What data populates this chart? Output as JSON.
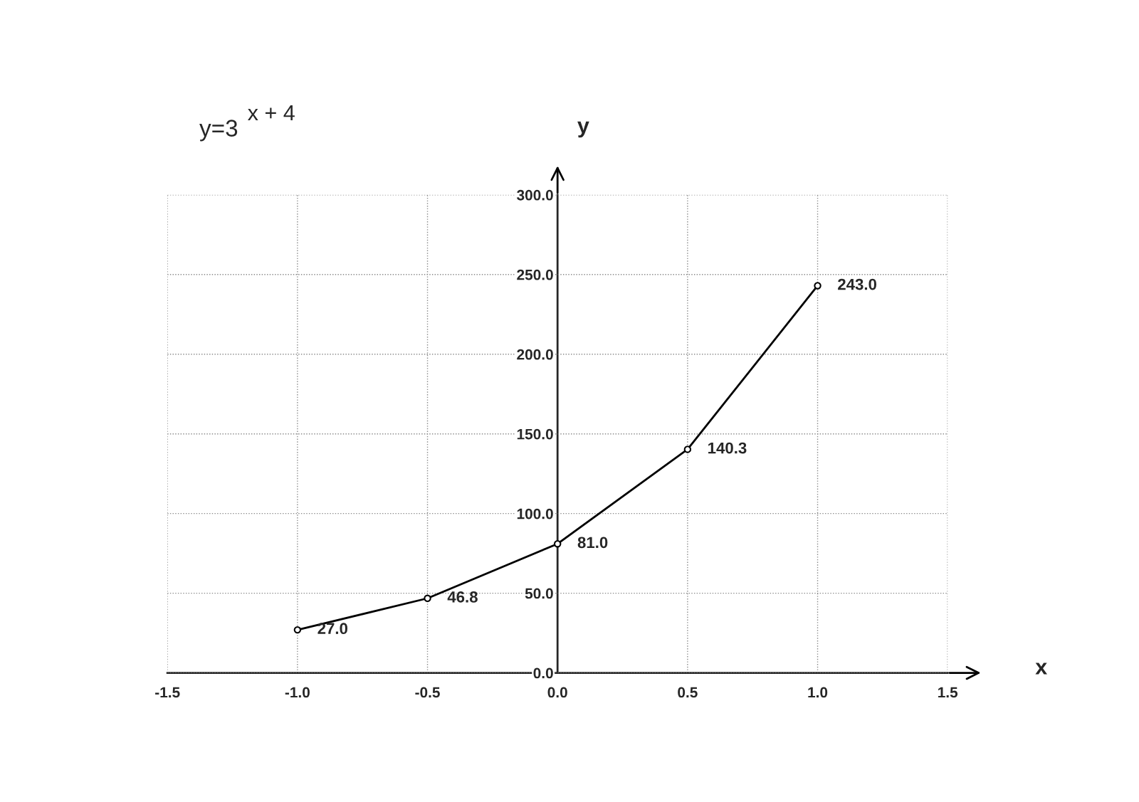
{
  "chart_data": {
    "type": "line",
    "title": "y=3$^{x + 4}$",
    "xlabel": "x",
    "ylabel": "y",
    "x": [
      -1.0,
      -0.5,
      0.0,
      0.5,
      1.0
    ],
    "series": [
      {
        "color": "#000000",
        "values": [
          27.0,
          46.8,
          81.0,
          140.3,
          243.0
        ],
        "value_labels": [
          "27.0",
          "46.8",
          "81.0",
          "140.3",
          "243.0"
        ]
      }
    ],
    "xlim": [
      -1.5,
      1.5
    ],
    "ylim": [
      0,
      300
    ],
    "xticks": [
      {
        "value": -1.5,
        "label": "-1.5"
      },
      {
        "value": -1.0,
        "label": "-1.0"
      },
      {
        "value": -0.5,
        "label": "-0.5"
      },
      {
        "value": 0.0,
        "label": "0.0"
      },
      {
        "value": 0.5,
        "label": "0.5"
      },
      {
        "value": 1.0,
        "label": "1.0"
      },
      {
        "value": 1.5,
        "label": "1.5"
      }
    ],
    "yticks": [
      {
        "value": 0,
        "label": "0.0"
      },
      {
        "value": 50,
        "label": "50.0"
      },
      {
        "value": 100,
        "label": "100.0"
      },
      {
        "value": 150,
        "label": "150.0"
      },
      {
        "value": 200,
        "label": "200.0"
      },
      {
        "value": 250,
        "label": "250.0"
      },
      {
        "value": 300,
        "label": "300.0"
      }
    ],
    "grid": true,
    "marker": "circle",
    "line_style": "solid"
  }
}
